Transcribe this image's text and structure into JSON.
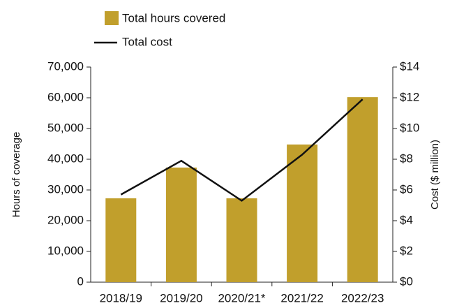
{
  "chart_data": {
    "type": "bar_line",
    "categories": [
      "2018/19",
      "2019/20",
      "2020/21*",
      "2021/22",
      "2022/23"
    ],
    "series": [
      {
        "name": "Total hours covered",
        "type": "bar",
        "color": "#c19f2c",
        "values": [
          27300,
          37300,
          27300,
          44800,
          60200
        ]
      },
      {
        "name": "Total cost",
        "type": "line",
        "color": "#111111",
        "axis": "y2",
        "values": [
          5.7,
          7.9,
          5.3,
          8.3,
          11.9
        ]
      }
    ],
    "ylabel": "Hours of coverage",
    "y2label": "Cost ($ million)",
    "ylim": [
      0,
      70000
    ],
    "yticks": [
      0,
      {
        "value": 10000,
        "label": "10,000"
      },
      {
        "value": 20000,
        "label": "20,000"
      },
      {
        "value": 30000,
        "label": "30,000"
      },
      {
        "value": 40000,
        "label": "40,000"
      },
      {
        "value": 50000,
        "label": "50,000"
      },
      {
        "value": 60000,
        "label": "60,000"
      },
      {
        "value": 70000,
        "label": "70,000"
      }
    ],
    "y2lim": [
      0,
      14
    ],
    "y2ticks": [
      {
        "value": 0,
        "label": "$0"
      },
      {
        "value": 2,
        "label": "$2"
      },
      {
        "value": 4,
        "label": "$4"
      },
      {
        "value": 6,
        "label": "$6"
      },
      {
        "value": 8,
        "label": "$8"
      },
      {
        "value": 10,
        "label": "$10"
      },
      {
        "value": 12,
        "label": "$12"
      },
      {
        "value": 14,
        "label": "$14"
      }
    ],
    "legend": "top"
  }
}
